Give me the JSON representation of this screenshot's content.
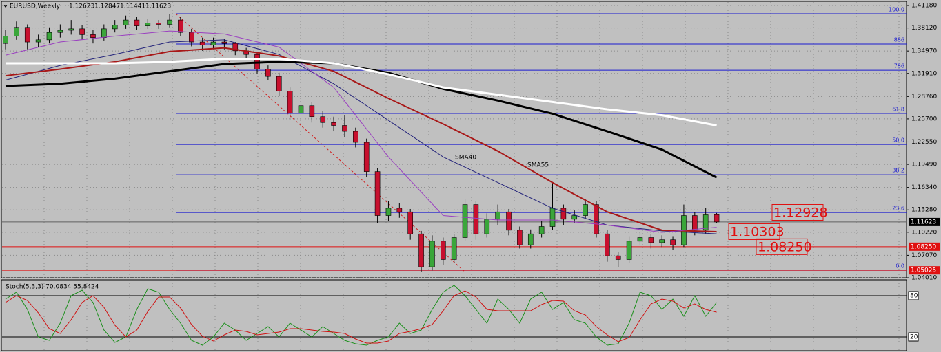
{
  "chart_data": [
    {
      "type": "candlestick",
      "title": "EURUSD,Weekly",
      "ylim": [
        1.0401,
        1.4118
      ],
      "yticks": [
        {
          "value": 1.4118,
          "label": "1.41180"
        },
        {
          "value": 1.3812,
          "label": "1.38120"
        },
        {
          "value": 1.3497,
          "label": "1.34970"
        },
        {
          "value": 1.3191,
          "label": "1.31910"
        },
        {
          "value": 1.2876,
          "label": "1.28760"
        },
        {
          "value": 1.257,
          "label": "1.25700"
        },
        {
          "value": 1.2255,
          "label": "1.22550"
        },
        {
          "value": 1.1949,
          "label": "1.19490"
        },
        {
          "value": 1.1634,
          "label": "1.16340"
        },
        {
          "value": 1.1328,
          "label": "1.13280"
        },
        {
          "value": 1.1022,
          "label": "1.10220"
        },
        {
          "value": 1.0707,
          "label": "1.07070"
        },
        {
          "value": 1.0401,
          "label": "1.04010"
        }
      ],
      "grid": true,
      "up_color": "#3aa63a",
      "down_color": "#c8102e",
      "ohlc": [
        [
          1.36,
          1.378,
          1.352,
          1.37
        ],
        [
          1.37,
          1.39,
          1.365,
          1.382
        ],
        [
          1.382,
          1.386,
          1.352,
          1.362
        ],
        [
          1.362,
          1.372,
          1.355,
          1.365
        ],
        [
          1.365,
          1.382,
          1.36,
          1.375
        ],
        [
          1.375,
          1.386,
          1.368,
          1.378
        ],
        [
          1.378,
          1.392,
          1.372,
          1.38
        ],
        [
          1.38,
          1.385,
          1.365,
          1.372
        ],
        [
          1.372,
          1.378,
          1.36,
          1.368
        ],
        [
          1.368,
          1.386,
          1.364,
          1.38
        ],
        [
          1.38,
          1.392,
          1.375,
          1.385
        ],
        [
          1.385,
          1.398,
          1.38,
          1.392
        ],
        [
          1.392,
          1.396,
          1.378,
          1.384
        ],
        [
          1.384,
          1.394,
          1.38,
          1.388
        ],
        [
          1.388,
          1.392,
          1.38,
          1.386
        ],
        [
          1.386,
          1.4,
          1.382,
          1.392
        ],
        [
          1.392,
          1.396,
          1.37,
          1.375
        ],
        [
          1.375,
          1.38,
          1.356,
          1.362
        ],
        [
          1.362,
          1.368,
          1.35,
          1.358
        ],
        [
          1.358,
          1.368,
          1.352,
          1.362
        ],
        [
          1.362,
          1.366,
          1.352,
          1.36
        ],
        [
          1.36,
          1.362,
          1.344,
          1.35
        ],
        [
          1.35,
          1.354,
          1.34,
          1.345
        ],
        [
          1.345,
          1.348,
          1.318,
          1.325
        ],
        [
          1.325,
          1.33,
          1.31,
          1.315
        ],
        [
          1.315,
          1.32,
          1.288,
          1.295
        ],
        [
          1.295,
          1.3,
          1.255,
          1.265
        ],
        [
          1.265,
          1.285,
          1.258,
          1.275
        ],
        [
          1.275,
          1.28,
          1.252,
          1.26
        ],
        [
          1.26,
          1.268,
          1.245,
          1.252
        ],
        [
          1.252,
          1.26,
          1.24,
          1.248
        ],
        [
          1.248,
          1.262,
          1.232,
          1.24
        ],
        [
          1.24,
          1.245,
          1.218,
          1.225
        ],
        [
          1.225,
          1.23,
          1.178,
          1.185
        ],
        [
          1.185,
          1.19,
          1.115,
          1.125
        ],
        [
          1.125,
          1.145,
          1.118,
          1.135
        ],
        [
          1.135,
          1.142,
          1.122,
          1.13
        ],
        [
          1.13,
          1.134,
          1.092,
          1.1
        ],
        [
          1.1,
          1.104,
          1.048,
          1.055
        ],
        [
          1.055,
          1.098,
          1.05,
          1.09
        ],
        [
          1.09,
          1.095,
          1.058,
          1.065
        ],
        [
          1.065,
          1.1,
          1.06,
          1.095
        ],
        [
          1.095,
          1.148,
          1.09,
          1.14
        ],
        [
          1.14,
          1.145,
          1.092,
          1.1
        ],
        [
          1.1,
          1.128,
          1.095,
          1.12
        ],
        [
          1.12,
          1.14,
          1.112,
          1.13
        ],
        [
          1.13,
          1.134,
          1.098,
          1.105
        ],
        [
          1.105,
          1.11,
          1.08,
          1.085
        ],
        [
          1.085,
          1.106,
          1.08,
          1.1
        ],
        [
          1.1,
          1.118,
          1.095,
          1.11
        ],
        [
          1.11,
          1.17,
          1.105,
          1.135
        ],
        [
          1.135,
          1.14,
          1.112,
          1.12
        ],
        [
          1.12,
          1.132,
          1.115,
          1.125
        ],
        [
          1.125,
          1.148,
          1.12,
          1.14
        ],
        [
          1.14,
          1.145,
          1.095,
          1.1
        ],
        [
          1.1,
          1.105,
          1.062,
          1.07
        ],
        [
          1.07,
          1.075,
          1.055,
          1.065
        ],
        [
          1.065,
          1.096,
          1.06,
          1.09
        ],
        [
          1.09,
          1.102,
          1.085,
          1.095
        ],
        [
          1.095,
          1.1,
          1.08,
          1.088
        ],
        [
          1.088,
          1.098,
          1.082,
          1.092
        ],
        [
          1.092,
          1.096,
          1.078,
          1.085
        ],
        [
          1.085,
          1.14,
          1.082,
          1.125
        ],
        [
          1.125,
          1.13,
          1.098,
          1.105
        ],
        [
          1.105,
          1.135,
          1.1,
          1.126
        ],
        [
          1.12623,
          1.12847,
          1.11441,
          1.11623
        ]
      ],
      "ma_x": [
        0,
        5,
        10,
        15,
        20,
        25,
        30,
        35,
        40,
        45,
        50,
        55,
        60,
        65
      ],
      "moving_averages": [
        {
          "name": "SMA40",
          "color": "#23237a",
          "width": 1,
          "values": [
            1.31,
            1.33,
            1.345,
            1.362,
            1.365,
            1.345,
            1.305,
            1.255,
            1.205,
            1.17,
            1.135,
            1.112,
            1.104,
            1.1
          ]
        },
        {
          "name": "SMA55",
          "color": "#a81818",
          "width": 2,
          "values": [
            1.316,
            1.325,
            1.335,
            1.349,
            1.354,
            1.343,
            1.322,
            1.285,
            1.25,
            1.213,
            1.17,
            1.13,
            1.105,
            1.103
          ]
        },
        {
          "color": "#9a3fc0",
          "width": 1,
          "values": [
            1.344,
            1.362,
            1.37,
            1.377,
            1.373,
            1.355,
            1.3,
            1.205,
            1.125,
            1.119,
            1.119,
            1.112,
            1.102,
            1.109
          ]
        },
        {
          "color": "#000000",
          "width": 3,
          "values": [
            1.302,
            1.305,
            1.312,
            1.322,
            1.332,
            1.335,
            1.333,
            1.32,
            1.298,
            1.282,
            1.264,
            1.24,
            1.215,
            1.177
          ]
        },
        {
          "color": "#ffffff",
          "width": 3,
          "values": [
            1.333,
            1.333,
            1.333,
            1.335,
            1.339,
            1.339,
            1.333,
            1.318,
            1.3,
            1.29,
            1.28,
            1.27,
            1.262,
            1.248
          ]
        }
      ],
      "fib_levels": [
        {
          "value": 1.4005,
          "label": "100.0"
        },
        {
          "value": 1.3592,
          "label": "886"
        },
        {
          "value": 1.3235,
          "label": "786"
        },
        {
          "value": 1.2644,
          "label": "61.8"
        },
        {
          "value": 1.2221,
          "label": "50.0"
        },
        {
          "value": 1.1808,
          "label": "38.2"
        },
        {
          "value": 1.1292,
          "label": "23.6"
        },
        {
          "value": 1.0503,
          "label": "0.0"
        }
      ],
      "levels": [
        {
          "value": 1.0825,
          "label": "1.08250"
        },
        {
          "value": 1.05025,
          "label": "1.05025"
        }
      ],
      "current": {
        "value": 1.11623,
        "label": "1.11623"
      },
      "annotations": [
        {
          "value": 1.12928,
          "label": "1.12928"
        },
        {
          "value": 1.10303,
          "label": "1.10303"
        },
        {
          "value": 1.0825,
          "label": "1.08250"
        }
      ]
    },
    {
      "type": "line",
      "title": "Stoch(5,3,3) 70.0834 55.8424",
      "ylim": [
        0,
        100
      ],
      "yticks": [
        80,
        20
      ],
      "series": [
        {
          "color": "#1a8f1a",
          "values": [
            75,
            85,
            60,
            20,
            15,
            40,
            80,
            88,
            70,
            30,
            12,
            20,
            60,
            90,
            85,
            60,
            40,
            15,
            8,
            20,
            40,
            30,
            15,
            25,
            35,
            20,
            40,
            30,
            20,
            35,
            25,
            15,
            10,
            8,
            15,
            20,
            40,
            25,
            30,
            60,
            85,
            95,
            80,
            60,
            40,
            75,
            60,
            40,
            75,
            85,
            60,
            70,
            45,
            40,
            20,
            8,
            10,
            40,
            85,
            80,
            60,
            75,
            50,
            80,
            50,
            70.0834
          ]
        },
        {
          "color": "#d01010",
          "values": [
            70,
            80,
            73,
            55,
            32,
            25,
            45,
            70,
            80,
            63,
            37,
            20,
            30,
            57,
            78,
            78,
            62,
            38,
            21,
            14,
            23,
            30,
            28,
            23,
            25,
            27,
            32,
            32,
            30,
            28,
            27,
            25,
            17,
            11,
            11,
            14,
            25,
            28,
            32,
            38,
            58,
            80,
            87,
            78,
            60,
            58,
            58,
            58,
            58,
            67,
            73,
            72,
            58,
            52,
            35,
            23,
            13,
            19,
            45,
            68,
            75,
            72,
            62,
            68,
            60,
            55.8424
          ]
        }
      ]
    }
  ]
}
